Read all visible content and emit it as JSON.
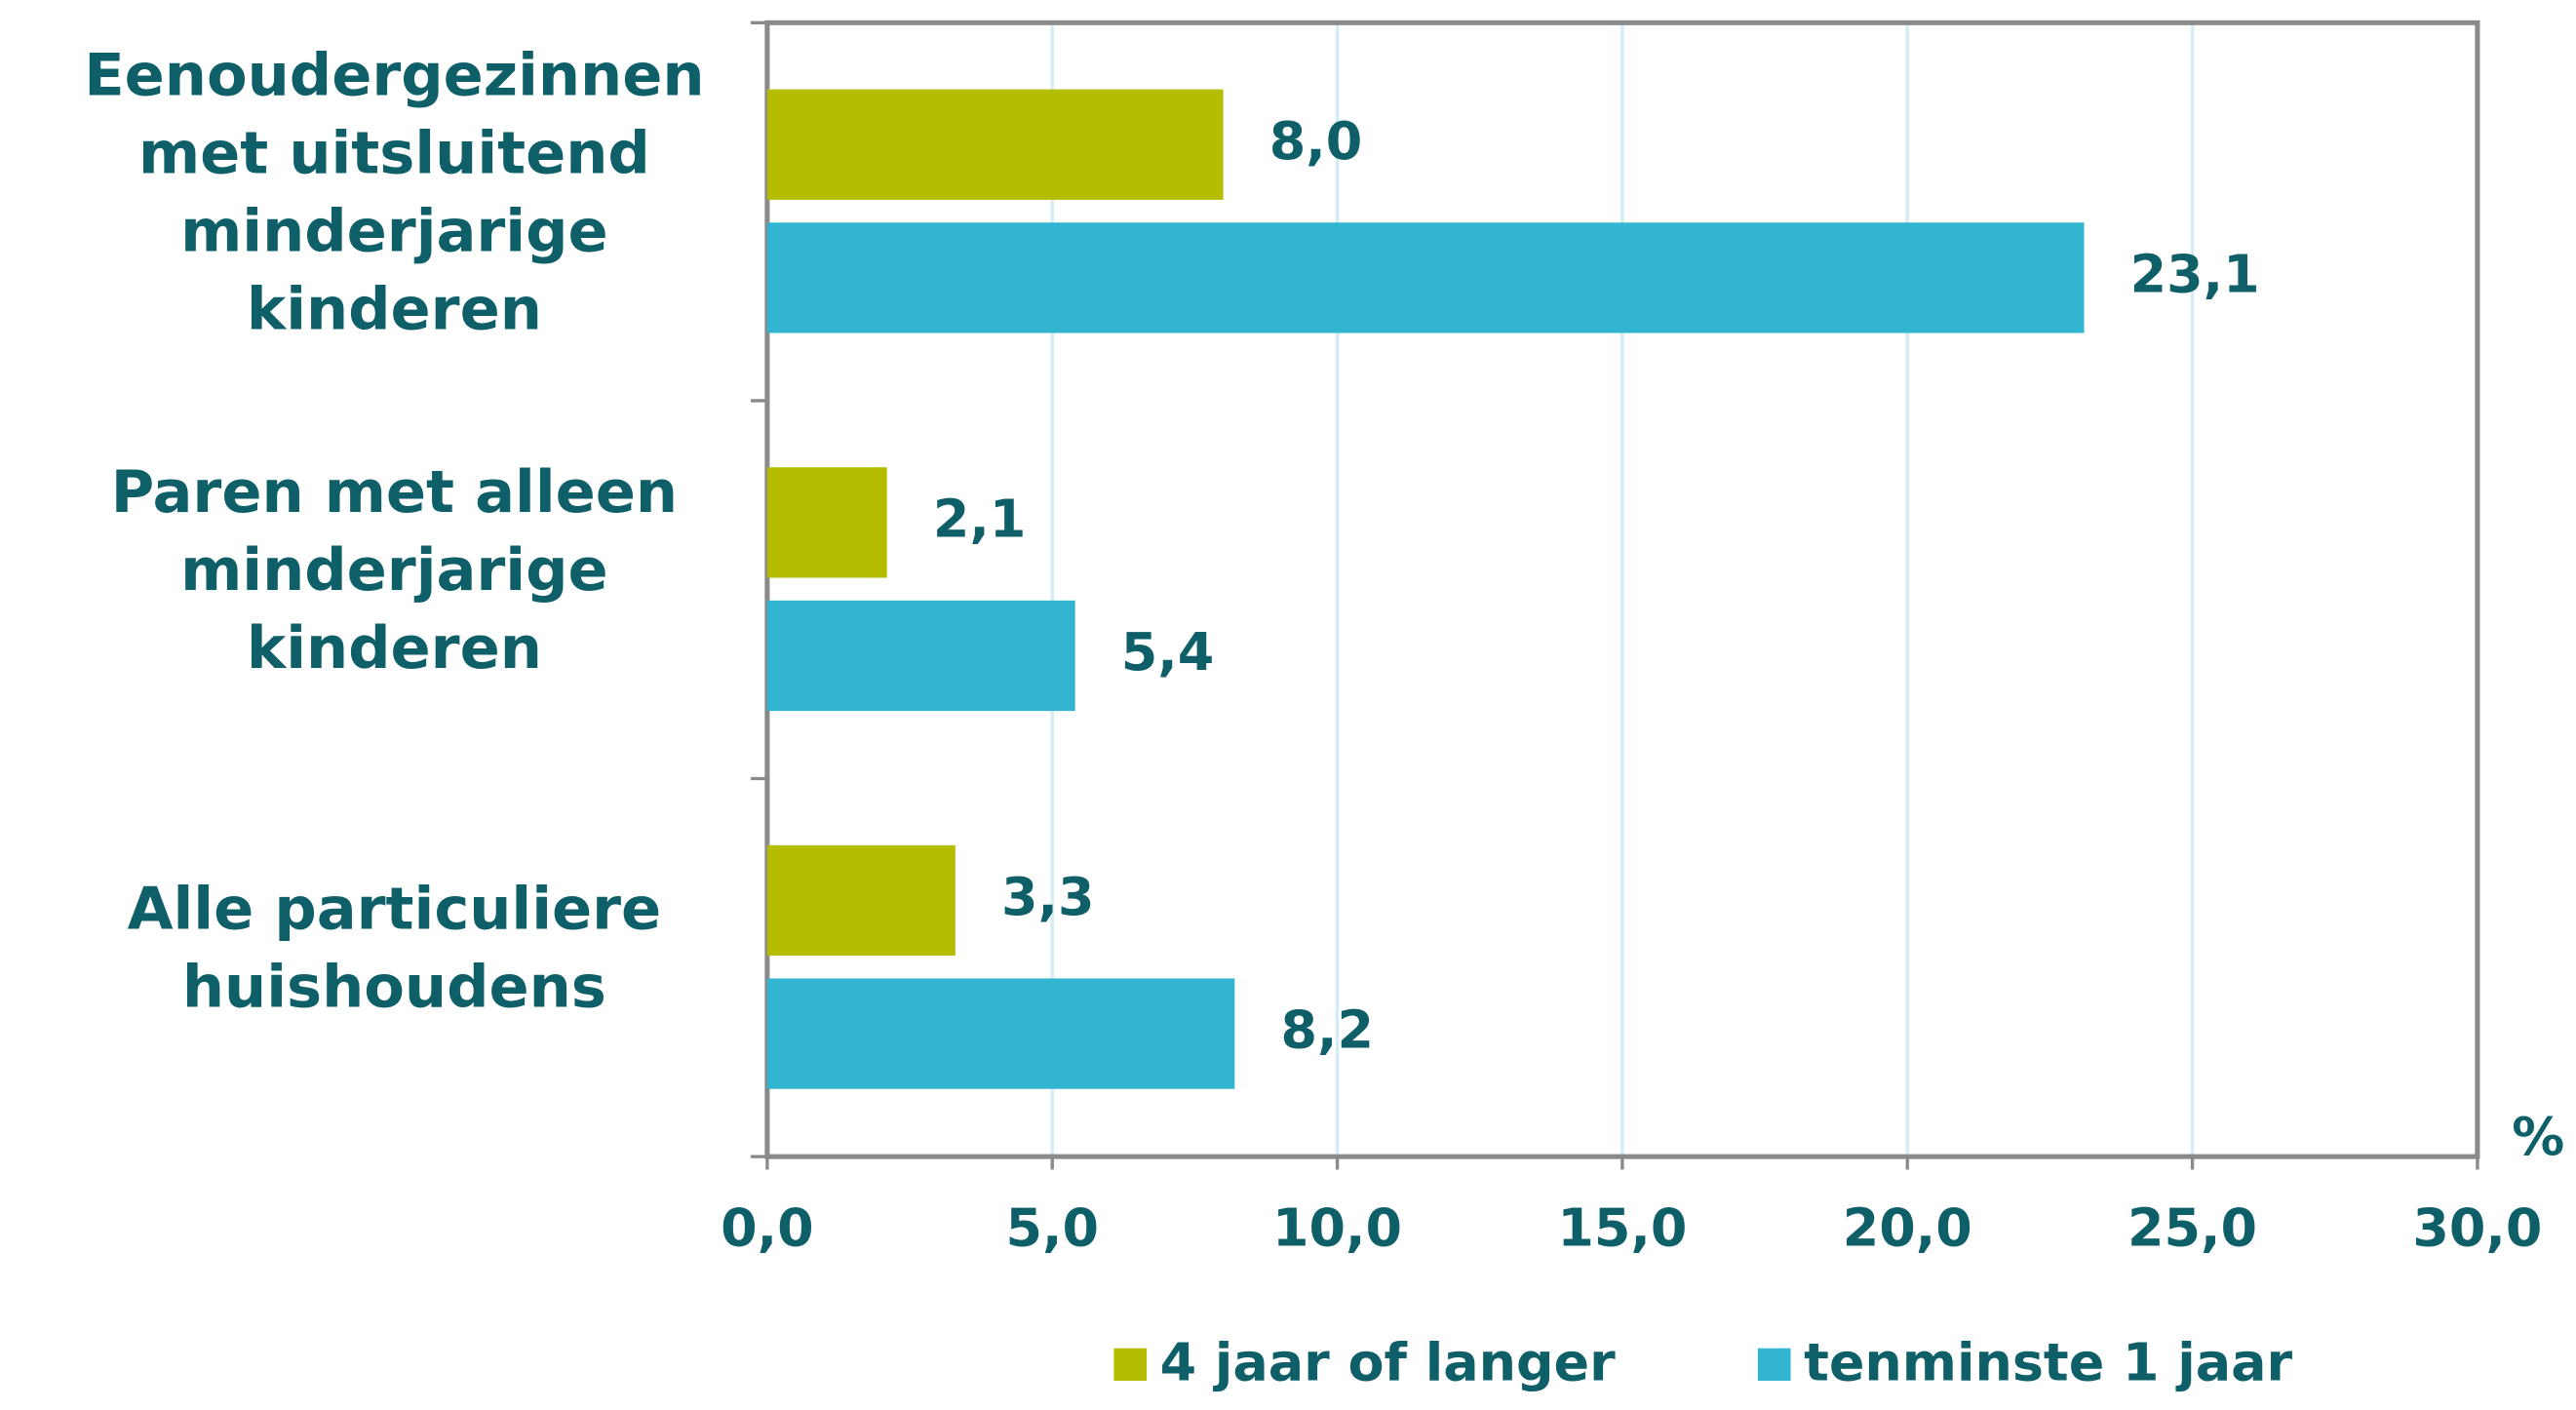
{
  "chart_data": {
    "type": "hbar",
    "categories": [
      "Eenoudergezinnen met uitsluitend minderjarige kinderen",
      "Paren met alleen minderjarige kinderen",
      "Alle particuliere huishoudens"
    ],
    "series": [
      {
        "name": "4 jaar of langer",
        "color": "#b4bd00",
        "values": [
          8.0,
          2.1,
          3.3
        ],
        "value_labels": [
          "8,0",
          "2,1",
          "3,3"
        ]
      },
      {
        "name": "tenminste 1 jaar",
        "color": "#31b5d1",
        "values": [
          23.1,
          5.4,
          8.2
        ],
        "value_labels": [
          "23,1",
          "5,4",
          "8,2"
        ]
      }
    ],
    "x_label": "%",
    "xlim": [
      0,
      30
    ],
    "xticks": [
      {
        "value": 0,
        "label": "0,0"
      },
      {
        "value": 5,
        "label": "5,0"
      },
      {
        "value": 10,
        "label": "10,0"
      },
      {
        "value": 15,
        "label": "15,0"
      },
      {
        "value": 20,
        "label": "20,0"
      },
      {
        "value": 25,
        "label": "25,0"
      },
      {
        "value": 30,
        "label": "30,0"
      }
    ],
    "grid": true,
    "legend": "bottom"
  }
}
